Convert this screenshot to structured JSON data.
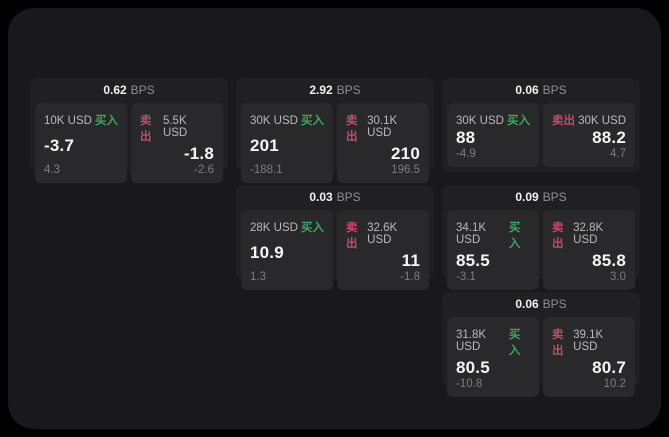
{
  "labels": {
    "bps": "BPS",
    "buy": "买入",
    "sell": "卖出"
  },
  "colors": {
    "page_bg": "#000000",
    "panel_bg": "#19191b",
    "card_bg": "#202023",
    "quote_bg": "#29292c",
    "buy_green": "#3aa85e",
    "sell_red": "#c44b66",
    "text_primary": "#f5f5f5",
    "text_secondary": "#b9b9b9",
    "text_muted": "#7d7d7d"
  },
  "cards": [
    {
      "bps": "0.62",
      "row": 1,
      "col": 1,
      "buy": {
        "amount": "10K USD",
        "price": "-3.7",
        "delta": "4.3"
      },
      "sell": {
        "amount": "5.5K USD",
        "price": "-1.8",
        "delta": "-2.6"
      }
    },
    {
      "bps": "2.92",
      "row": 1,
      "col": 2,
      "buy": {
        "amount": "30K USD",
        "price": "201",
        "delta": "-188.1"
      },
      "sell": {
        "amount": "30.1K USD",
        "price": "210",
        "delta": "196.5"
      }
    },
    {
      "bps": "0.06",
      "row": 1,
      "col": 3,
      "buy": {
        "amount": "30K USD",
        "price": "88",
        "delta": "-4.9"
      },
      "sell": {
        "amount": "30K USD",
        "price": "88.2",
        "delta": "4.7"
      }
    },
    {
      "bps": "0.03",
      "row": 2,
      "col": 2,
      "buy": {
        "amount": "28K USD",
        "price": "10.9",
        "delta": "1.3"
      },
      "sell": {
        "amount": "32.6K USD",
        "price": "11",
        "delta": "-1.8"
      }
    },
    {
      "bps": "0.09",
      "row": 2,
      "col": 3,
      "buy": {
        "amount": "34.1K USD",
        "price": "85.5",
        "delta": "-3.1"
      },
      "sell": {
        "amount": "32.8K USD",
        "price": "85.8",
        "delta": "3.0"
      }
    },
    {
      "bps": "0.06",
      "row": 3,
      "col": 3,
      "buy": {
        "amount": "31.8K USD",
        "price": "80.5",
        "delta": "-10.8"
      },
      "sell": {
        "amount": "39.1K USD",
        "price": "80.7",
        "delta": "10.2"
      }
    }
  ]
}
